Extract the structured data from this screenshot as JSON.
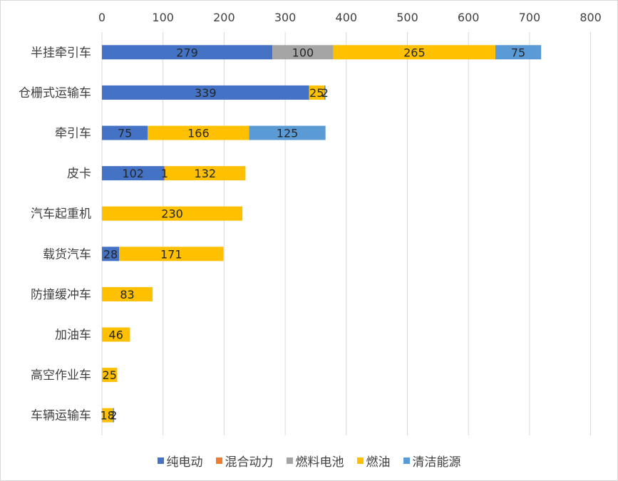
{
  "chart_data": {
    "type": "bar",
    "orientation": "horizontal",
    "stacked": true,
    "title": "",
    "xlabel": "",
    "ylabel": "",
    "xlim": [
      0,
      800
    ],
    "x_ticks": [
      "0",
      "100",
      "200",
      "300",
      "400",
      "500",
      "600",
      "700",
      "800"
    ],
    "grid": true,
    "legend_position": "bottom",
    "categories": [
      "半挂牵引车",
      "仓栅式运输车",
      "牵引车",
      "皮卡",
      "汽车起重机",
      "载货汽车",
      "防撞缓冲车",
      "加油车",
      "高空作业车",
      "车辆运输车"
    ],
    "series": [
      {
        "name": "纯电动",
        "color": "#4472C4",
        "values": [
          279,
          339,
          75,
          102,
          0,
          28,
          0,
          0,
          0,
          0
        ]
      },
      {
        "name": "混合动力",
        "color": "#ED7D31",
        "values": [
          0,
          0,
          0,
          1,
          0,
          0,
          0,
          0,
          0,
          0
        ]
      },
      {
        "name": "燃料电池",
        "color": "#A5A5A5",
        "values": [
          100,
          0,
          0,
          0,
          0,
          0,
          0,
          0,
          0,
          0
        ]
      },
      {
        "name": "燃油",
        "color": "#FFC000",
        "values": [
          265,
          25,
          166,
          132,
          230,
          171,
          83,
          46,
          25,
          18
        ]
      },
      {
        "name": "清洁能源",
        "color": "#5B9BD5",
        "values": [
          75,
          2,
          125,
          0,
          0,
          0,
          0,
          0,
          0,
          2
        ]
      }
    ],
    "data_labels": [
      [
        {
          "series": 0,
          "text": "279"
        },
        {
          "series": 2,
          "text": "100"
        },
        {
          "series": 3,
          "text": "265"
        },
        {
          "series": 4,
          "text": "75"
        }
      ],
      [
        {
          "series": 0,
          "text": "339"
        },
        {
          "series": 4,
          "text": "2"
        },
        {
          "series": 3,
          "text": "25"
        }
      ],
      [
        {
          "series": 0,
          "text": "75"
        },
        {
          "series": 3,
          "text": "166"
        },
        {
          "series": 4,
          "text": "125"
        }
      ],
      [
        {
          "series": 0,
          "text": "102"
        },
        {
          "series": 1,
          "text": "1"
        },
        {
          "series": 3,
          "text": "132"
        }
      ],
      [
        {
          "series": 3,
          "text": "230"
        }
      ],
      [
        {
          "series": 0,
          "text": "28"
        },
        {
          "series": 3,
          "text": "171"
        }
      ],
      [
        {
          "series": 3,
          "text": "83"
        }
      ],
      [
        {
          "series": 3,
          "text": "46"
        }
      ],
      [
        {
          "series": 3,
          "text": "25"
        }
      ],
      [
        {
          "series": 3,
          "text": "18"
        },
        {
          "series": 4,
          "text": "2"
        }
      ]
    ]
  }
}
